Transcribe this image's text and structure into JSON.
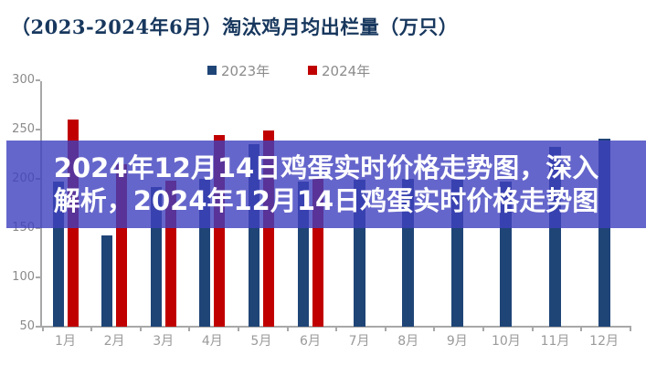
{
  "title": "（2023-2024年6月）淘汰鸡月均出栏量（万只）",
  "title_color": "#17375d",
  "legend": [
    {
      "label": "2023年",
      "color": "#1f4577"
    },
    {
      "label": "2024年",
      "color": "#c00000"
    }
  ],
  "overlay": {
    "line1": "2024年12月14日鸡蛋实时价格走势图，深入",
    "line2": "解析，2024年12月14日鸡蛋实时价格走势图",
    "background": "rgba(62,64,190,0.8)",
    "text_color": "#ffffff"
  },
  "axis": {
    "line_color": "#a8a8a8",
    "label_color": "#8a8a8a"
  },
  "chart_data": {
    "type": "bar",
    "title": "（2023-2024年6月）淘汰鸡月均出栏量（万只）",
    "unit": "万只",
    "categories": [
      "1月",
      "2月",
      "3月",
      "4月",
      "5月",
      "6月",
      "7月",
      "8月",
      "9月",
      "10月",
      "11月",
      "12月"
    ],
    "series": [
      {
        "name": "2023年",
        "color": "#1f4577",
        "values": [
          197,
          143,
          192,
          200,
          235,
          197,
          199,
          200,
          199,
          197,
          232,
          241
        ]
      },
      {
        "name": "2024年",
        "color": "#c00000",
        "values": [
          260,
          215,
          198,
          244,
          249,
          202,
          null,
          null,
          null,
          null,
          null,
          null
        ]
      }
    ],
    "ylim": [
      50,
      300
    ],
    "yticks": [
      300,
      250,
      200,
      150,
      100,
      50
    ],
    "grid": false,
    "legend_position": "top"
  }
}
